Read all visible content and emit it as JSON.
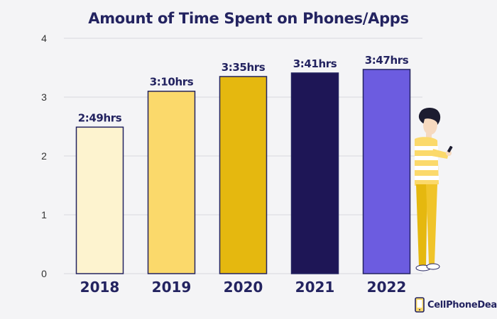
{
  "chart_data": {
    "type": "bar",
    "title": "Amount of Time Spent on Phones/Apps",
    "categories": [
      "2018",
      "2019",
      "2020",
      "2021",
      "2022"
    ],
    "values": [
      2.49,
      3.1,
      3.35,
      3.41,
      3.47
    ],
    "data_labels": [
      "2:49hrs",
      "3:10hrs",
      "3:35hrs",
      "3:41hrs",
      "3:47hrs"
    ],
    "colors": [
      "#fdf3cf",
      "#fbd96b",
      "#e5b80f",
      "#1e1656",
      "#6c5ce0"
    ],
    "ylim": [
      0,
      4
    ],
    "yticks": [
      0,
      1,
      2,
      3,
      4
    ],
    "grid": true,
    "gridline_color": "#d9d9dd",
    "bar_outline_color": "#232360",
    "xlabel": "",
    "ylabel": ""
  },
  "brand": {
    "name": "CellPhoneDeal",
    "icon": "phone-icon"
  },
  "illustration": {
    "icon": "person-using-phone-icon"
  }
}
